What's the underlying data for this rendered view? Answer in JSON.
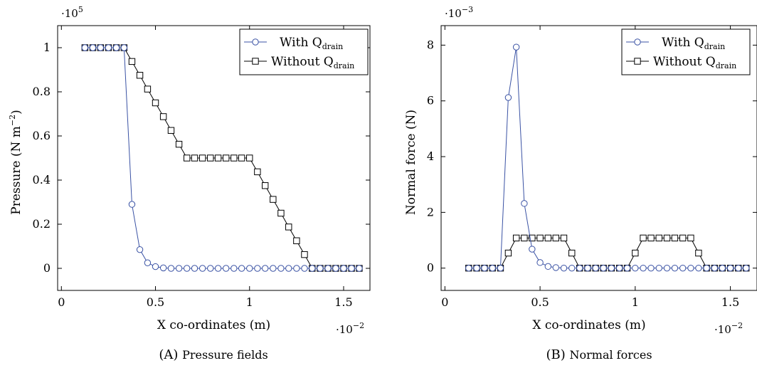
{
  "chart_data": [
    {
      "type": "line",
      "caption_letter": "(A)",
      "caption_text": "Pressure fields",
      "xlabel": "X co-ordinates (m)",
      "ylabel": "Pressure (N m",
      "ylabel_sup": "−2",
      "ylabel_tail": ")",
      "y_multiplier_base": "·10",
      "y_multiplier_exp": "5",
      "x_multiplier_base": "·10",
      "x_multiplier_exp": "−2",
      "xlim": [
        -0.02,
        1.64
      ],
      "ylim": [
        -0.1,
        1.1
      ],
      "xticks": [
        0,
        0.5,
        1,
        1.5
      ],
      "xtick_labels": [
        "0",
        "0.5",
        "1",
        "1.5"
      ],
      "yticks": [
        0,
        0.2,
        0.4,
        0.6,
        0.8,
        1
      ],
      "ytick_labels": [
        "0",
        "0.2",
        "0.4",
        "0.6",
        "0.8",
        "1"
      ],
      "legend_position": "top-right",
      "series": [
        {
          "name": "With Q",
          "name_sub": "drain",
          "marker": "circle",
          "color": "#3a52a4",
          "x": [
            0.125,
            0.167,
            0.208,
            0.25,
            0.292,
            0.333,
            0.375,
            0.417,
            0.458,
            0.5,
            0.542,
            0.583,
            0.625,
            0.667,
            0.708,
            0.75,
            0.792,
            0.833,
            0.875,
            0.917,
            0.958,
            1.0,
            1.042,
            1.083,
            1.125,
            1.167,
            1.208,
            1.25,
            1.292,
            1.333,
            1.375,
            1.417,
            1.458,
            1.5,
            1.542,
            1.583
          ],
          "y": [
            1,
            1,
            1,
            1,
            1,
            1,
            0.29,
            0.085,
            0.025,
            0.008,
            0.002,
            0,
            0,
            0,
            0,
            0,
            0,
            0,
            0,
            0,
            0,
            0,
            0,
            0,
            0,
            0,
            0,
            0,
            0,
            0,
            0,
            0,
            0,
            0,
            0,
            0
          ]
        },
        {
          "name": "Without Q",
          "name_sub": "drain",
          "marker": "square",
          "color": "#000000",
          "x": [
            0.125,
            0.167,
            0.208,
            0.25,
            0.292,
            0.333,
            0.375,
            0.417,
            0.458,
            0.5,
            0.542,
            0.583,
            0.625,
            0.667,
            0.708,
            0.75,
            0.792,
            0.833,
            0.875,
            0.917,
            0.958,
            1.0,
            1.042,
            1.083,
            1.125,
            1.167,
            1.208,
            1.25,
            1.292,
            1.333,
            1.375,
            1.417,
            1.458,
            1.5,
            1.542,
            1.583
          ],
          "y": [
            1,
            1,
            1,
            1,
            1,
            1,
            0.9375,
            0.875,
            0.8125,
            0.75,
            0.6875,
            0.625,
            0.5625,
            0.5,
            0.5,
            0.5,
            0.5,
            0.5,
            0.5,
            0.5,
            0.5,
            0.5,
            0.4375,
            0.375,
            0.3125,
            0.25,
            0.1875,
            0.125,
            0.0625,
            0,
            0,
            0,
            0,
            0,
            0,
            0
          ]
        }
      ]
    },
    {
      "type": "line",
      "caption_letter": "(B)",
      "caption_text": "Normal forces",
      "xlabel": "X co-ordinates (m)",
      "ylabel": "Normal force (N)",
      "ylabel_sup": "",
      "ylabel_tail": "",
      "y_multiplier_base": "·10",
      "y_multiplier_exp": "−3",
      "x_multiplier_base": "·10",
      "x_multiplier_exp": "−2",
      "xlim": [
        -0.02,
        1.64
      ],
      "ylim": [
        -0.8,
        8.7
      ],
      "xticks": [
        0,
        0.5,
        1,
        1.5
      ],
      "xtick_labels": [
        "0",
        "0.5",
        "1",
        "1.5"
      ],
      "yticks": [
        0,
        2,
        4,
        6,
        8
      ],
      "ytick_labels": [
        "0",
        "2",
        "4",
        "6",
        "8"
      ],
      "legend_position": "top-right",
      "series": [
        {
          "name": "With Q",
          "name_sub": "drain",
          "marker": "circle",
          "color": "#3a52a4",
          "x": [
            0.125,
            0.167,
            0.208,
            0.25,
            0.292,
            0.333,
            0.375,
            0.417,
            0.458,
            0.5,
            0.542,
            0.583,
            0.625,
            0.667,
            0.708,
            0.75,
            0.792,
            0.833,
            0.875,
            0.917,
            0.958,
            1.0,
            1.042,
            1.083,
            1.125,
            1.167,
            1.208,
            1.25,
            1.292,
            1.333,
            1.375,
            1.417,
            1.458,
            1.5,
            1.542,
            1.583
          ],
          "y": [
            0,
            0,
            0,
            0,
            0,
            6.12,
            7.93,
            2.32,
            0.68,
            0.2,
            0.06,
            0.02,
            0,
            0,
            0,
            0,
            0,
            0,
            0,
            0,
            0,
            0,
            0,
            0,
            0,
            0,
            0,
            0,
            0,
            0,
            0,
            0,
            0,
            0,
            0,
            0
          ]
        },
        {
          "name": "Without Q",
          "name_sub": "drain",
          "marker": "square",
          "color": "#000000",
          "x": [
            0.125,
            0.167,
            0.208,
            0.25,
            0.292,
            0.333,
            0.375,
            0.417,
            0.458,
            0.5,
            0.542,
            0.583,
            0.625,
            0.667,
            0.708,
            0.75,
            0.792,
            0.833,
            0.875,
            0.917,
            0.958,
            1.0,
            1.042,
            1.083,
            1.125,
            1.167,
            1.208,
            1.25,
            1.292,
            1.333,
            1.375,
            1.417,
            1.458,
            1.5,
            1.542,
            1.583
          ],
          "y": [
            0,
            0,
            0,
            0,
            0,
            0.54,
            1.08,
            1.08,
            1.08,
            1.08,
            1.08,
            1.08,
            1.08,
            0.54,
            0,
            0,
            0,
            0,
            0,
            0,
            0,
            0.54,
            1.08,
            1.08,
            1.08,
            1.08,
            1.08,
            1.08,
            1.08,
            0.54,
            0,
            0,
            0,
            0,
            0,
            0
          ]
        }
      ]
    }
  ]
}
